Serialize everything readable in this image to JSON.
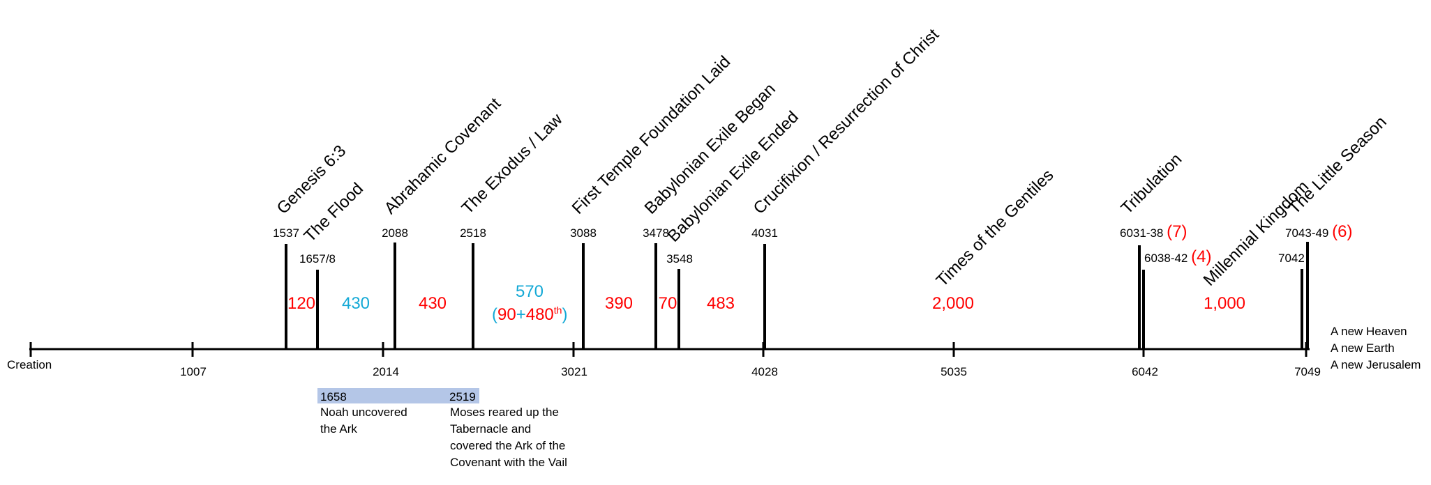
{
  "axis": {
    "origin_label": "Creation",
    "ticks": [
      "1007",
      "2014",
      "3021",
      "4028",
      "5035",
      "6042",
      "7049"
    ]
  },
  "events": {
    "genesis": "Genesis 6:3",
    "flood": "The Flood",
    "abrahamic": "Abrahamic Covenant",
    "exodus": "The Exodus / Law",
    "temple": "First Temple Foundation Laid",
    "exile_began": "Babylonian Exile Began",
    "exile_ended": "Babylonian Exile Ended",
    "crucifixion": "Crucifixion / Resurrection of Christ",
    "gentiles": "Times of the Gentiles",
    "tribulation": "Tribulation",
    "millennial": "Millennial Kingdom",
    "little_season": "The Little Season"
  },
  "years": {
    "genesis": "1537",
    "flood": "1657/8",
    "abrahamic": "2088",
    "exodus": "2518",
    "temple": "3088",
    "exile_began": "3478",
    "exile_ended": "3548",
    "crucifixion": "4031",
    "tribulation": "6031-38",
    "tribulation_count": "(7)",
    "tribulation2": "6038-42",
    "tribulation2_count": "(4)",
    "little_season": "7043-49",
    "little_season_count": "(6)",
    "millennium_end": "7042"
  },
  "spans": {
    "s120": "120",
    "s430a": "430",
    "s430b": "430",
    "s570": "570",
    "s570_open": "(",
    "s570_a": "90",
    "s570_plus": "+",
    "s570_b": "480",
    "s570_sup": "th",
    "s570_close": ")",
    "s390": "390",
    "s70": "70",
    "s483": "483",
    "s2000": "2,000",
    "s1000": "1,000"
  },
  "notes": {
    "band_left": "1658",
    "band_right": "2519",
    "noah": "Noah uncovered the Ark",
    "moses": "Moses reared up the Tabernacle and covered the Ark of the Covenant with the Vail"
  },
  "final": {
    "line1": "A new Heaven",
    "line2": "A new Earth",
    "line3": "A new Jerusalem"
  },
  "colors": {
    "red": "#ff0000",
    "blue": "#14a9d6",
    "band": "#b4c6e7",
    "line": "#000000"
  }
}
